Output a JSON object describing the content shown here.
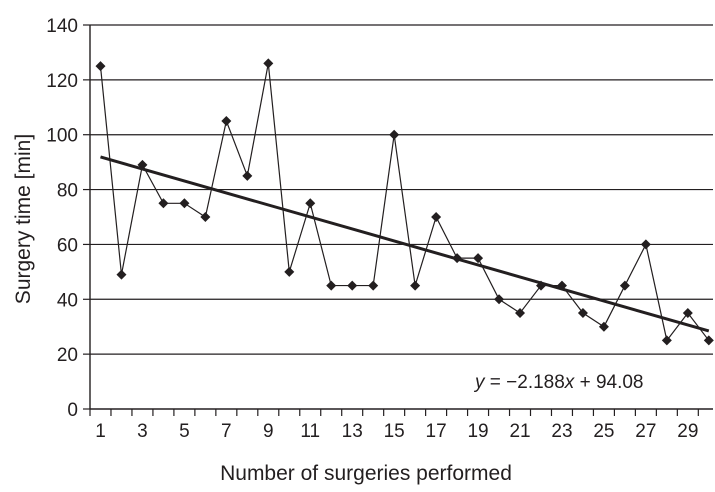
{
  "chart_data": {
    "type": "line",
    "xlabel": "Number of surgeries performed",
    "ylabel": "Surgery time [min]",
    "xlim": [
      0.5,
      30.2
    ],
    "ylim": [
      0,
      140
    ],
    "y_ticks": [
      0,
      20,
      40,
      60,
      80,
      100,
      120,
      140
    ],
    "x_tick_labels": [
      1,
      3,
      5,
      7,
      9,
      11,
      13,
      15,
      17,
      19,
      21,
      23,
      25,
      27,
      29
    ],
    "grid": "horizontal",
    "series": [
      {
        "x": [
          1,
          2,
          3,
          4,
          5,
          6,
          7,
          8,
          9,
          10,
          11,
          12,
          13,
          14,
          15,
          16,
          17,
          18,
          19,
          20,
          21,
          22,
          23,
          24,
          25,
          26,
          27,
          28,
          29,
          30
        ],
        "values": [
          125,
          49,
          89,
          75,
          75,
          70,
          105,
          85,
          126,
          50,
          75,
          45,
          45,
          45,
          100,
          45,
          70,
          55,
          55,
          40,
          35,
          45,
          45,
          35,
          30,
          45,
          60,
          25,
          35,
          25
        ],
        "marker": "diamond",
        "color": "#231f20"
      }
    ],
    "trendline": {
      "slope": -2.188,
      "intercept": 94.08,
      "x_range": [
        1,
        30
      ],
      "equation_parts": [
        "y",
        " = −2.188",
        "x",
        " + 94.08"
      ]
    }
  }
}
